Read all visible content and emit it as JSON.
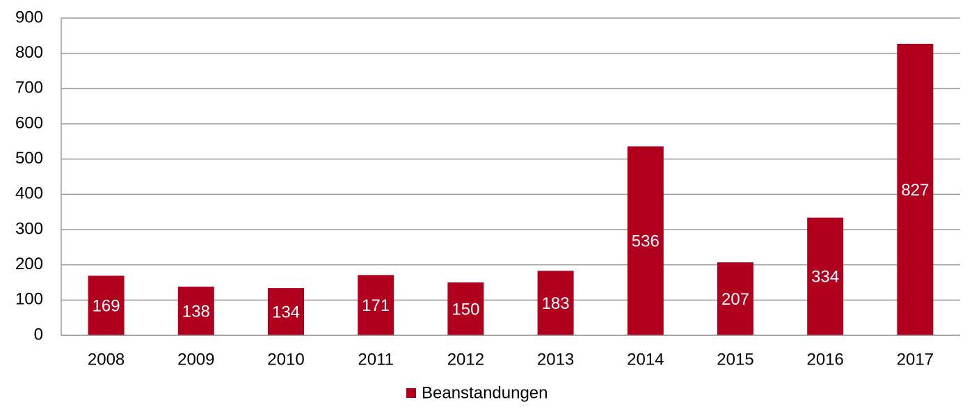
{
  "chart_data": {
    "type": "bar",
    "categories": [
      "2008",
      "2009",
      "2010",
      "2011",
      "2012",
      "2013",
      "2014",
      "2015",
      "2016",
      "2017"
    ],
    "series": [
      {
        "name": "Beanstandungen",
        "color": "#b0001e",
        "values": [
          169,
          138,
          134,
          171,
          150,
          183,
          536,
          207,
          334,
          827
        ]
      }
    ],
    "ylim": [
      0,
      900
    ],
    "yticks": [
      0,
      100,
      200,
      300,
      400,
      500,
      600,
      700,
      800,
      900
    ],
    "grid": true,
    "data_labels": true,
    "legend": "bottom"
  }
}
